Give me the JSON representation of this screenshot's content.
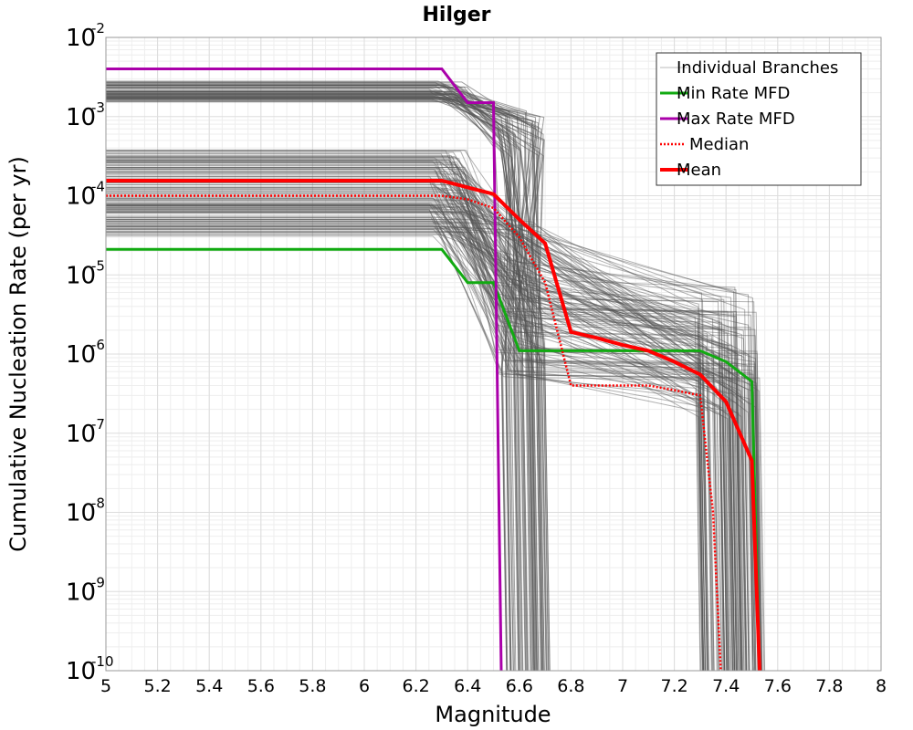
{
  "chart_data": {
    "type": "line",
    "title": "Hilger",
    "xlabel": "Magnitude",
    "ylabel": "Cumulative Nucleation Rate (per yr)",
    "xlim": [
      5,
      8
    ],
    "ylim": [
      1e-10,
      0.01
    ],
    "yscale": "log",
    "grid": true,
    "legend_position": "top-right",
    "x_ticks": [
      "5",
      "5.2",
      "5.4",
      "5.6",
      "5.8",
      "6",
      "6.2",
      "6.4",
      "6.6",
      "6.8",
      "7",
      "7.2",
      "7.4",
      "7.6",
      "7.8",
      "8"
    ],
    "y_ticks": [
      {
        "base": "10",
        "exp": "-10"
      },
      {
        "base": "10",
        "exp": "-9"
      },
      {
        "base": "10",
        "exp": "-8"
      },
      {
        "base": "10",
        "exp": "-7"
      },
      {
        "base": "10",
        "exp": "-6"
      },
      {
        "base": "10",
        "exp": "-5"
      },
      {
        "base": "10",
        "exp": "-4"
      },
      {
        "base": "10",
        "exp": "-3"
      },
      {
        "base": "10",
        "exp": "-2"
      }
    ],
    "series": [
      {
        "name": "Min Rate MFD",
        "color": "#11aa11",
        "style": "solid",
        "x": [
          5.0,
          6.3,
          6.4,
          6.5,
          6.6,
          6.7,
          6.8,
          6.9,
          7.0,
          7.1,
          7.2,
          7.3,
          7.4,
          7.5,
          7.53
        ],
        "y": [
          2.1e-05,
          2.1e-05,
          8e-06,
          8e-06,
          1.1e-06,
          1.1e-06,
          1.1e-06,
          1.1e-06,
          1.1e-06,
          1.1e-06,
          1.1e-06,
          1.1e-06,
          8e-07,
          4.5e-07,
          1e-10
        ]
      },
      {
        "name": "Max Rate MFD",
        "color": "#aa00aa",
        "style": "solid",
        "x": [
          5.0,
          6.3,
          6.4,
          6.5,
          6.53
        ],
        "y": [
          0.004,
          0.004,
          0.0015,
          0.0015,
          1e-10
        ]
      },
      {
        "name": "Median",
        "color": "#ff0000",
        "style": "dotted",
        "x": [
          5.0,
          6.3,
          6.4,
          6.5,
          6.6,
          6.7,
          6.8,
          6.9,
          7.0,
          7.1,
          7.2,
          7.3,
          7.35,
          7.38
        ],
        "y": [
          0.0001,
          0.0001,
          9e-05,
          7e-05,
          3e-05,
          8e-06,
          4e-07,
          4e-07,
          4e-07,
          4e-07,
          3.5e-07,
          3e-07,
          1e-08,
          1e-10
        ]
      },
      {
        "name": "Mean",
        "color": "#ff0000",
        "style": "thick",
        "x": [
          5.0,
          6.3,
          6.5,
          6.6,
          6.7,
          6.8,
          6.9,
          7.0,
          7.1,
          7.2,
          7.3,
          7.4,
          7.5,
          7.53
        ],
        "y": [
          0.000155,
          0.000155,
          0.000105,
          5e-05,
          2.5e-05,
          1.9e-06,
          1.6e-06,
          1.3e-06,
          1.1e-06,
          8e-07,
          5.5e-07,
          2.5e-07,
          4.5e-08,
          1e-10
        ]
      }
    ],
    "legend": [
      {
        "label": "Individual Branches",
        "color": "#bbbbbb",
        "style": "thin"
      },
      {
        "label": "Min Rate MFD",
        "color": "#11aa11",
        "style": "solid"
      },
      {
        "label": "Max Rate MFD",
        "color": "#aa00aa",
        "style": "solid"
      },
      {
        "label": "Median",
        "color": "#ff0000",
        "style": "dotted"
      },
      {
        "label": "Mean",
        "color": "#ff0000",
        "style": "thick"
      }
    ],
    "branches": {
      "name": "Individual Branches",
      "color": "#555555",
      "description_groups": [
        {
          "plateau": [
            0.0015,
            0.0028
          ],
          "mid": [
            0.0003,
            0.0012
          ],
          "tail": [
            5e-07,
            3e-06
          ],
          "drop_mag": [
            6.55,
            6.72
          ]
        },
        {
          "plateau": [
            3e-05,
            0.00038
          ],
          "mid": [
            5e-07,
            5e-05
          ],
          "tail": [
            1.5e-07,
            7e-06
          ],
          "drop_mag": [
            7.3,
            7.55
          ]
        }
      ]
    }
  }
}
